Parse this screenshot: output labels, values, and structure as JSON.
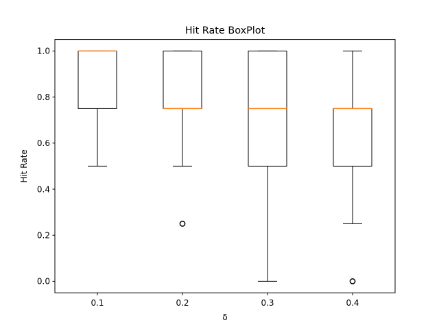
{
  "chart_data": {
    "type": "box",
    "title": "Hit Rate BoxPlot",
    "xlabel": "δ",
    "ylabel": "Hit Rate",
    "ylim": [
      -0.05,
      1.05
    ],
    "yticks": [
      0.0,
      0.2,
      0.4,
      0.6,
      0.8,
      1.0
    ],
    "ytick_labels": [
      "0.0",
      "0.2",
      "0.4",
      "0.6",
      "0.8",
      "1.0"
    ],
    "categories": [
      "0.1",
      "0.2",
      "0.3",
      "0.4"
    ],
    "boxes": [
      {
        "category": "0.1",
        "whisker_low": 0.5,
        "q1": 0.75,
        "median": 1.0,
        "q3": 1.0,
        "whisker_high": 1.0,
        "outliers": []
      },
      {
        "category": "0.2",
        "whisker_low": 0.5,
        "q1": 0.75,
        "median": 0.75,
        "q3": 1.0,
        "whisker_high": 1.0,
        "outliers": [
          0.25
        ]
      },
      {
        "category": "0.3",
        "whisker_low": 0.0,
        "q1": 0.5,
        "median": 0.75,
        "q3": 1.0,
        "whisker_high": 1.0,
        "outliers": []
      },
      {
        "category": "0.4",
        "whisker_low": 0.25,
        "q1": 0.5,
        "median": 0.75,
        "q3": 0.75,
        "whisker_high": 1.0,
        "outliers": [
          0.0
        ]
      }
    ],
    "grid": false,
    "colors": {
      "box": "#000000",
      "median": "#ff7f0e",
      "outlier": "#000000"
    }
  }
}
